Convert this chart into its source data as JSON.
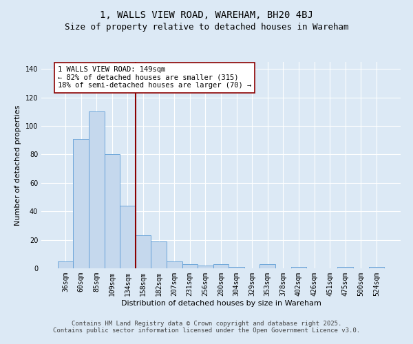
{
  "title_line1": "1, WALLS VIEW ROAD, WAREHAM, BH20 4BJ",
  "title_line2": "Size of property relative to detached houses in Wareham",
  "xlabel": "Distribution of detached houses by size in Wareham",
  "ylabel": "Number of detached properties",
  "categories": [
    "36sqm",
    "60sqm",
    "85sqm",
    "109sqm",
    "134sqm",
    "158sqm",
    "182sqm",
    "207sqm",
    "231sqm",
    "256sqm",
    "280sqm",
    "304sqm",
    "329sqm",
    "353sqm",
    "378sqm",
    "402sqm",
    "426sqm",
    "451sqm",
    "475sqm",
    "500sqm",
    "524sqm"
  ],
  "values": [
    5,
    91,
    110,
    80,
    44,
    23,
    19,
    5,
    3,
    2,
    3,
    1,
    0,
    3,
    0,
    1,
    0,
    0,
    1,
    0,
    1
  ],
  "bar_color": "#c5d8ed",
  "bar_edge_color": "#5b9bd5",
  "vline_x": 4.5,
  "vline_color": "#8b0000",
  "annotation_text": "1 WALLS VIEW ROAD: 149sqm\n← 82% of detached houses are smaller (315)\n18% of semi-detached houses are larger (70) →",
  "annotation_box_color": "#ffffff",
  "annotation_box_edge_color": "#8b0000",
  "ylim": [
    0,
    145
  ],
  "yticks": [
    0,
    20,
    40,
    60,
    80,
    100,
    120,
    140
  ],
  "footer_text": "Contains HM Land Registry data © Crown copyright and database right 2025.\nContains public sector information licensed under the Open Government Licence v3.0.",
  "bg_color": "#dce9f5",
  "plot_bg_color": "#dce9f5",
  "grid_color": "#ffffff",
  "title_fontsize": 10,
  "subtitle_fontsize": 9,
  "axis_label_fontsize": 8,
  "tick_fontsize": 7,
  "annotation_fontsize": 7.5,
  "footer_fontsize": 6.5
}
